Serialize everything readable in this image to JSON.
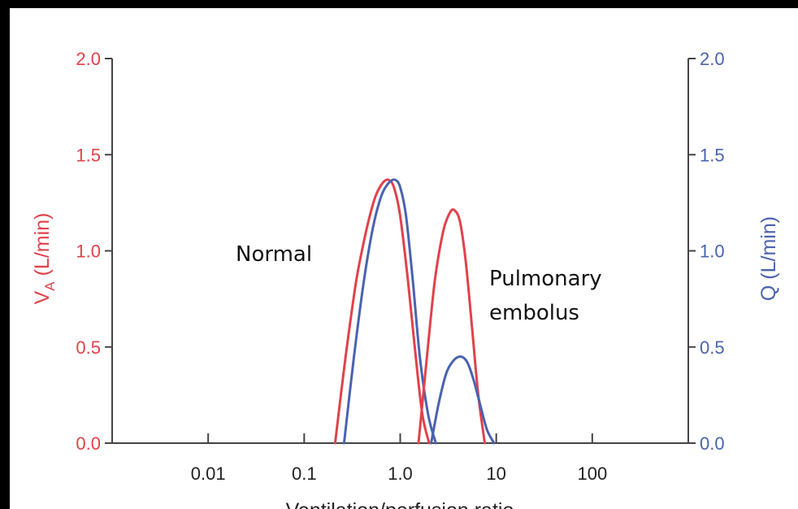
{
  "chart_data": {
    "type": "line",
    "xlabel": "Ventilation/perfusion ratio",
    "x_scale": "log",
    "xlim": [
      0.001,
      1000
    ],
    "x_ticks": [
      "0.01",
      "0.1",
      "1.0",
      "10",
      "100"
    ],
    "x_tick_values": [
      0.01,
      0.1,
      1,
      10,
      100
    ],
    "ylabel_left": {
      "main": "V",
      "sub": "A",
      "rest": " (L/min)"
    },
    "ylabel_right": "Q (L/min)",
    "ylim": [
      0,
      2.0
    ],
    "y_ticks": [
      "0.0",
      "0.5",
      "1.0",
      "1.5",
      "2.0"
    ],
    "y_tick_values": [
      0,
      0.5,
      1.0,
      1.5,
      2.0
    ],
    "colors": {
      "ventilation": "#e0424b",
      "perfusion": "#4a62b0",
      "axis": "#444444"
    },
    "series": [
      {
        "key": "normal_va",
        "axis": "left",
        "color": "#e0424b",
        "x": [
          0.21,
          0.27,
          0.35,
          0.45,
          0.55,
          0.65,
          0.75,
          0.86,
          1.0,
          1.2,
          1.45,
          1.7,
          2.0
        ],
        "y": [
          0.0,
          0.45,
          0.85,
          1.12,
          1.28,
          1.35,
          1.37,
          1.33,
          1.18,
          0.85,
          0.45,
          0.15,
          0.0
        ]
      },
      {
        "key": "normal_q",
        "axis": "right",
        "color": "#4a62b0",
        "x": [
          0.26,
          0.33,
          0.42,
          0.52,
          0.63,
          0.75,
          0.88,
          1.0,
          1.15,
          1.35,
          1.6,
          1.95,
          2.35
        ],
        "y": [
          0.0,
          0.45,
          0.85,
          1.12,
          1.28,
          1.35,
          1.37,
          1.33,
          1.18,
          0.85,
          0.45,
          0.15,
          0.0
        ]
      },
      {
        "key": "embolus_va",
        "axis": "left",
        "color": "#e0424b",
        "x": [
          1.55,
          1.9,
          2.3,
          2.8,
          3.3,
          3.7,
          4.2,
          4.8,
          5.6,
          6.5,
          7.6
        ],
        "y": [
          0.0,
          0.45,
          0.85,
          1.1,
          1.2,
          1.21,
          1.15,
          0.95,
          0.6,
          0.25,
          0.0
        ]
      },
      {
        "key": "embolus_q",
        "axis": "right",
        "color": "#4a62b0",
        "x": [
          2.1,
          2.5,
          3.0,
          3.6,
          4.3,
          5.0,
          5.8,
          6.8,
          8.0,
          9.5
        ],
        "y": [
          0.0,
          0.2,
          0.36,
          0.43,
          0.45,
          0.42,
          0.33,
          0.2,
          0.07,
          0.0
        ]
      }
    ],
    "annotations": [
      {
        "text": "Normal"
      },
      {
        "text": "Pulmonary"
      },
      {
        "text": "embolus"
      }
    ],
    "grid": false,
    "legend": "none"
  }
}
